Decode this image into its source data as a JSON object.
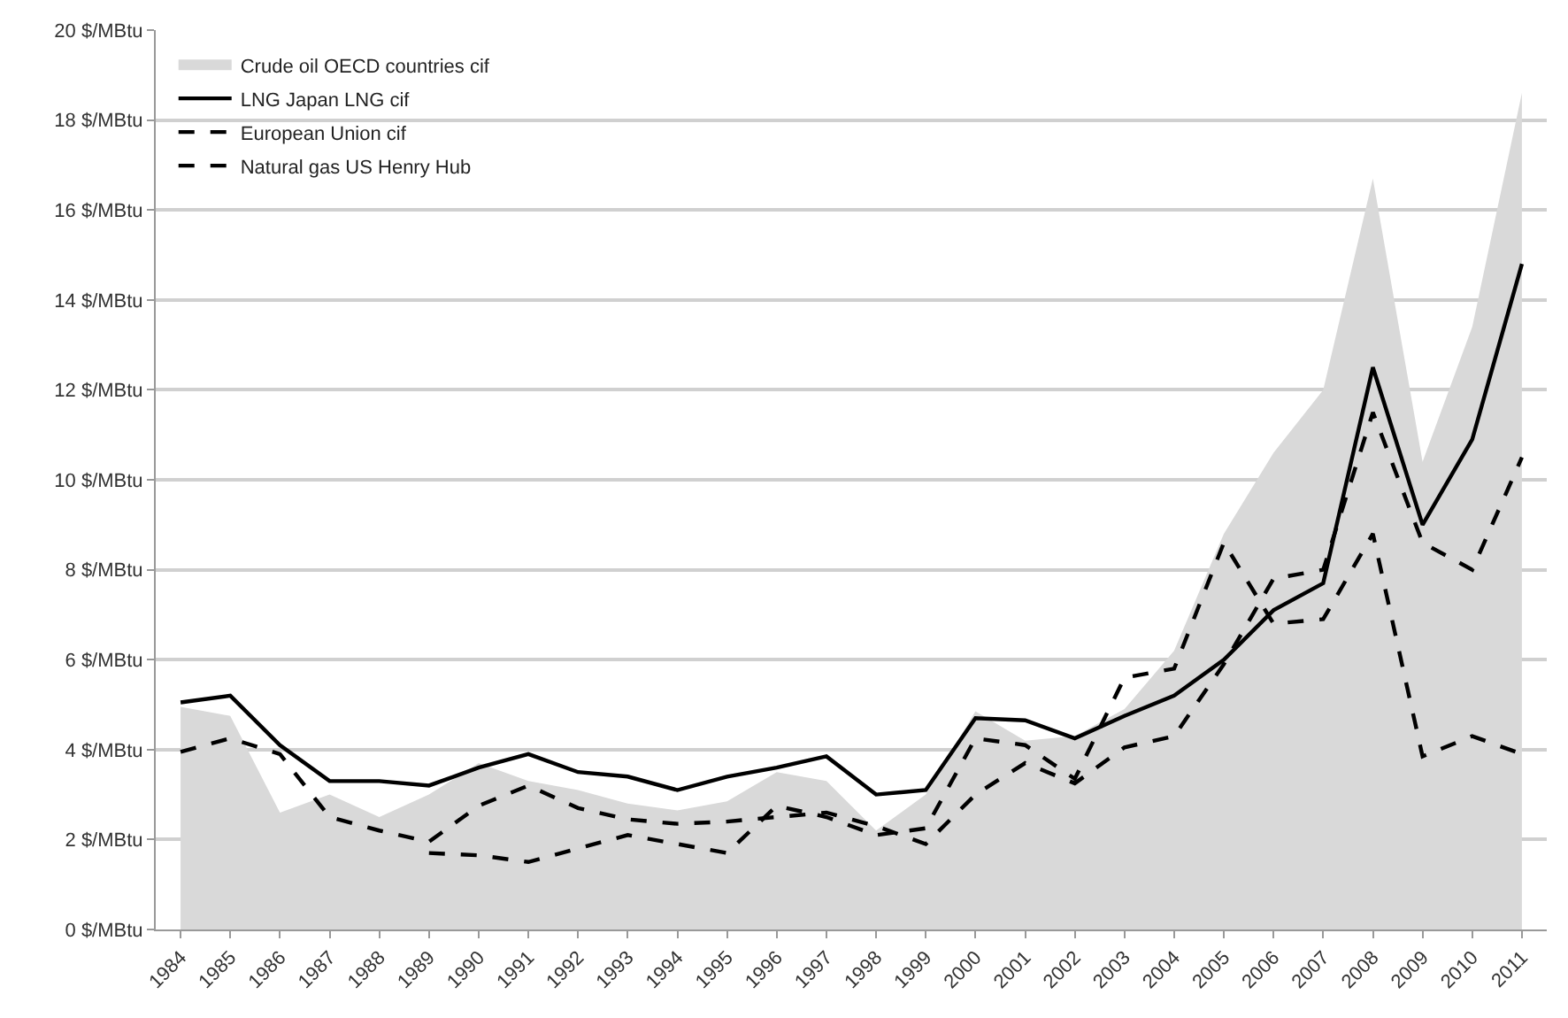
{
  "chart_data": {
    "type": "line",
    "categories": [
      "1984",
      "1985",
      "1986",
      "1987",
      "1988",
      "1989",
      "1990",
      "1991",
      "1992",
      "1993",
      "1994",
      "1995",
      "1996",
      "1997",
      "1998",
      "1999",
      "2000",
      "2001",
      "2002",
      "2003",
      "2004",
      "2005",
      "2006",
      "2007",
      "2008",
      "2009",
      "2010",
      "2011"
    ],
    "series": [
      {
        "name": "Crude oil OECD countries cif",
        "type": "area",
        "color": "#d9d9d9",
        "values": [
          4.95,
          4.75,
          2.6,
          3.0,
          2.5,
          3.0,
          3.7,
          3.3,
          3.1,
          2.8,
          2.65,
          2.85,
          3.5,
          3.3,
          2.2,
          3.0,
          4.85,
          4.2,
          4.3,
          4.9,
          6.2,
          8.8,
          10.6,
          12.0,
          16.7,
          10.4,
          13.4,
          18.6
        ]
      },
      {
        "name": "LNG Japan LNG cif",
        "color": "#000000",
        "line_style": "solid",
        "values": [
          5.05,
          5.2,
          4.1,
          3.3,
          3.3,
          3.2,
          3.6,
          3.9,
          3.5,
          3.4,
          3.1,
          3.4,
          3.6,
          3.85,
          3.0,
          3.1,
          4.7,
          4.65,
          4.25,
          4.75,
          5.2,
          6.0,
          7.1,
          7.7,
          12.5,
          9.0,
          10.9,
          14.8
        ]
      },
      {
        "name": "European Union cif",
        "color": "#000000",
        "line_style": "dashed",
        "values": [
          3.95,
          4.25,
          3.9,
          2.5,
          2.2,
          1.95,
          2.75,
          3.2,
          2.7,
          2.45,
          2.35,
          2.4,
          2.5,
          2.6,
          2.3,
          1.9,
          3.0,
          3.7,
          3.25,
          4.05,
          4.3,
          5.9,
          7.8,
          8.0,
          11.5,
          8.6,
          8.0,
          10.5
        ]
      },
      {
        "name": "Natural gas US Henry Hub",
        "color": "#000000",
        "line_style": "dashed",
        "values": [
          null,
          null,
          null,
          null,
          null,
          1.7,
          1.65,
          1.5,
          1.8,
          2.1,
          1.9,
          1.7,
          2.75,
          2.5,
          2.1,
          2.25,
          4.25,
          4.1,
          3.35,
          5.6,
          5.8,
          8.6,
          6.8,
          6.9,
          8.8,
          3.85,
          4.3,
          3.9
        ]
      }
    ],
    "ylim": [
      0,
      20
    ],
    "yticks": [
      {
        "value": 0,
        "label": "0 $/MBtu"
      },
      {
        "value": 2,
        "label": "2 $/MBtu"
      },
      {
        "value": 4,
        "label": "4 $/MBtu"
      },
      {
        "value": 6,
        "label": "6 $/MBtu"
      },
      {
        "value": 8,
        "label": "8 $/MBtu"
      },
      {
        "value": 10,
        "label": "10 $/MBtu"
      },
      {
        "value": 12,
        "label": "12 $/MBtu"
      },
      {
        "value": 14,
        "label": "14 $/MBtu"
      },
      {
        "value": 16,
        "label": "16 $/MBtu"
      },
      {
        "value": 18,
        "label": "18 $/MBtu"
      },
      {
        "value": 20,
        "label": "20 $/MBtu"
      }
    ],
    "grid": "y",
    "legend": "top left",
    "marker": "none"
  }
}
